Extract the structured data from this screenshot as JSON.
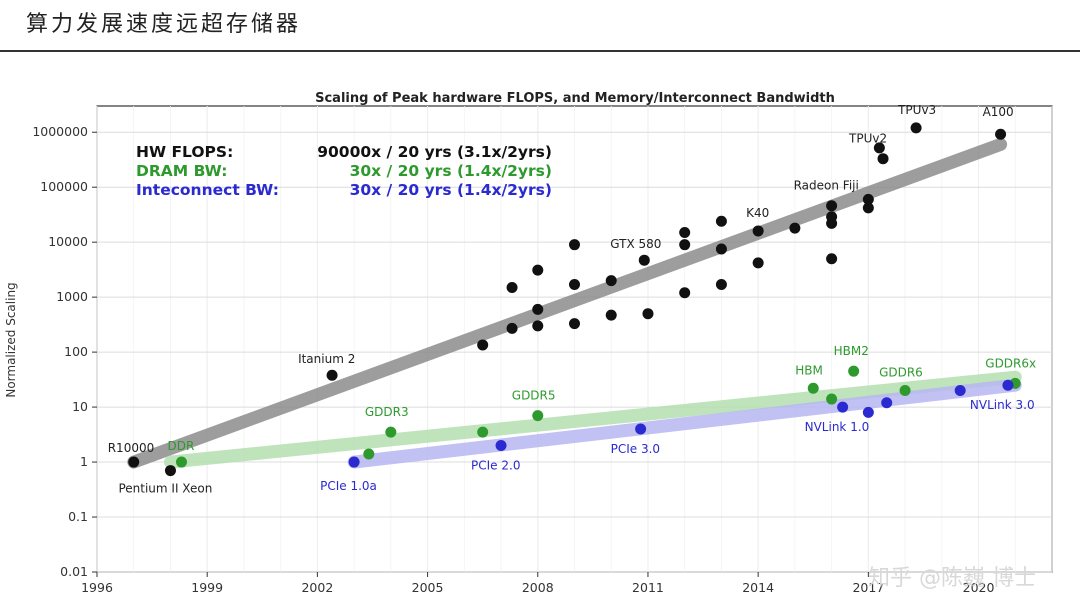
{
  "page": {
    "heading": "算力发展速度远超存储器",
    "watermark": "知乎 @陈巍 博士"
  },
  "chart_data": {
    "type": "scatter",
    "title": "Scaling of Peak hardware FLOPS, and Memory/Interconnect Bandwidth",
    "xlabel": "",
    "ylabel": "Normalized Scaling",
    "y_scale": "log",
    "xlim": [
      1996,
      2022
    ],
    "ylim": [
      0.01,
      3000000
    ],
    "x_ticks": [
      1996,
      1999,
      2002,
      2005,
      2008,
      2011,
      2014,
      2017,
      2020
    ],
    "y_ticks": [
      0.01,
      0.1,
      1,
      10,
      100,
      1000,
      10000,
      100000,
      1000000
    ],
    "y_tick_labels": [
      "0.01",
      "0.1",
      "1",
      "10",
      "100",
      "1000",
      "10000",
      "100000",
      "1000000"
    ],
    "grid": true,
    "legend_text": [
      {
        "label": "HW FLOPS:",
        "value": "90000x / 20 yrs (3.1x/2yrs)",
        "color": "#111111"
      },
      {
        "label": "DRAM BW:",
        "value": "30x / 20 yrs (1.4x/2yrs)",
        "color": "#2e9a2e"
      },
      {
        "label": "Inteconnect BW:",
        "value": "30x / 20 yrs (1.4x/2yrs)",
        "color": "#2a2ad0"
      }
    ],
    "colors": {
      "flops_points": "#111111",
      "flops_trend": "#8c8c8c",
      "dram_points": "#2e9a2e",
      "dram_trend": "#b5dfb0",
      "interconnect_points": "#2a2ad0",
      "interconnect_trend": "#b7b7f2"
    },
    "series": [
      {
        "name": "HW FLOPS",
        "points": [
          {
            "x": 1997.0,
            "y": 1,
            "label": "R10000"
          },
          {
            "x": 1998.0,
            "y": 0.7,
            "label": "Pentium II Xeon"
          },
          {
            "x": 2002.4,
            "y": 38,
            "label": "Itanium 2"
          },
          {
            "x": 2006.5,
            "y": 135
          },
          {
            "x": 2007.3,
            "y": 1500
          },
          {
            "x": 2007.3,
            "y": 270
          },
          {
            "x": 2008.0,
            "y": 3100
          },
          {
            "x": 2008.0,
            "y": 600
          },
          {
            "x": 2008.0,
            "y": 300
          },
          {
            "x": 2009.0,
            "y": 9000
          },
          {
            "x": 2009.0,
            "y": 1700
          },
          {
            "x": 2009.0,
            "y": 330
          },
          {
            "x": 2010.0,
            "y": 2000
          },
          {
            "x": 2010.0,
            "y": 470
          },
          {
            "x": 2010.9,
            "y": 4700,
            "label": "GTX 580"
          },
          {
            "x": 2011.0,
            "y": 500
          },
          {
            "x": 2012.0,
            "y": 15000
          },
          {
            "x": 2012.0,
            "y": 9000
          },
          {
            "x": 2012.0,
            "y": 1200
          },
          {
            "x": 2013.0,
            "y": 24000
          },
          {
            "x": 2013.0,
            "y": 7500
          },
          {
            "x": 2013.0,
            "y": 1700
          },
          {
            "x": 2014.0,
            "y": 16000,
            "label": "K40"
          },
          {
            "x": 2014.0,
            "y": 4200
          },
          {
            "x": 2015.0,
            "y": 18000
          },
          {
            "x": 2016.0,
            "y": 46000,
            "label": "Radeon Fiji"
          },
          {
            "x": 2016.0,
            "y": 29000
          },
          {
            "x": 2016.0,
            "y": 22000
          },
          {
            "x": 2016.0,
            "y": 5000
          },
          {
            "x": 2017.0,
            "y": 60000
          },
          {
            "x": 2017.0,
            "y": 42000
          },
          {
            "x": 2017.3,
            "y": 520000
          },
          {
            "x": 2017.4,
            "y": 330000,
            "label": "TPUv2"
          },
          {
            "x": 2018.3,
            "y": 1200000,
            "label": "TPUv3"
          },
          {
            "x": 2020.6,
            "y": 920000,
            "label": "A100"
          }
        ]
      },
      {
        "name": "DRAM BW",
        "points": [
          {
            "x": 1998.3,
            "y": 1.0,
            "label": "DDR"
          },
          {
            "x": 2003.4,
            "y": 1.4
          },
          {
            "x": 2004.0,
            "y": 3.5,
            "label": "GDDR3"
          },
          {
            "x": 2006.5,
            "y": 3.5
          },
          {
            "x": 2008.0,
            "y": 7,
            "label": "GDDR5"
          },
          {
            "x": 2015.5,
            "y": 22,
            "label": "HBM"
          },
          {
            "x": 2016.0,
            "y": 14
          },
          {
            "x": 2016.6,
            "y": 45,
            "label": "HBM2"
          },
          {
            "x": 2018.0,
            "y": 20,
            "label": "GDDR6"
          },
          {
            "x": 2021.0,
            "y": 27,
            "label": "GDDR6x"
          }
        ]
      },
      {
        "name": "Interconnect BW",
        "points": [
          {
            "x": 2003.0,
            "y": 1.0,
            "label": "PCIe 1.0a"
          },
          {
            "x": 2007.0,
            "y": 2.0,
            "label": "PCIe 2.0"
          },
          {
            "x": 2010.8,
            "y": 4.0,
            "label": "PCIe 3.0"
          },
          {
            "x": 2016.3,
            "y": 10,
            "label": "NVLink 1.0"
          },
          {
            "x": 2017.0,
            "y": 8
          },
          {
            "x": 2017.5,
            "y": 12
          },
          {
            "x": 2019.5,
            "y": 20
          },
          {
            "x": 2020.8,
            "y": 25,
            "label": "NVLink 3.0"
          }
        ]
      }
    ],
    "trend_lines": [
      {
        "name": "HW FLOPS trend",
        "from": {
          "x": 1997.0,
          "y": 1
        },
        "to": {
          "x": 2020.6,
          "y": 600000
        }
      },
      {
        "name": "DRAM BW trend",
        "from": {
          "x": 1998.0,
          "y": 1.0
        },
        "to": {
          "x": 2021.0,
          "y": 35
        }
      },
      {
        "name": "Interconnect BW trend",
        "from": {
          "x": 2003.0,
          "y": 1.0
        },
        "to": {
          "x": 2021.0,
          "y": 25
        }
      }
    ]
  }
}
